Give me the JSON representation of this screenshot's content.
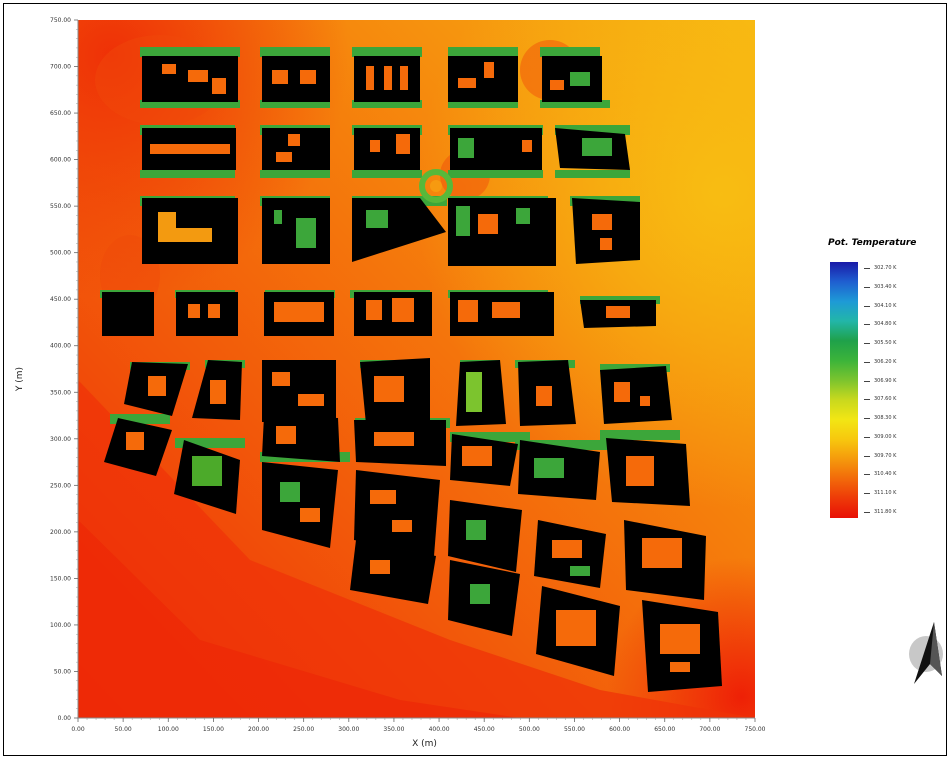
{
  "chart_data": {
    "type": "heatmap",
    "title": "",
    "xlabel": "X (m)",
    "ylabel": "Y (m)",
    "xlim": [
      0,
      750
    ],
    "ylim": [
      0,
      750
    ],
    "x_ticks": [
      "0.00",
      "50.00",
      "100.00",
      "150.00",
      "200.00",
      "250.00",
      "300.00",
      "350.00",
      "400.00",
      "450.00",
      "500.00",
      "550.00",
      "600.00",
      "650.00",
      "700.00",
      "750.00"
    ],
    "y_ticks": [
      "0.00",
      "50.00",
      "100.00",
      "150.00",
      "200.00",
      "250.00",
      "300.00",
      "350.00",
      "400.00",
      "450.00",
      "500.00",
      "550.00",
      "600.00",
      "650.00",
      "700.00",
      "750.00"
    ],
    "grid": false,
    "legend": {
      "title": "Pot. Temperature",
      "placement": "right",
      "labels": [
        "302.70 K",
        "303.40 K",
        "304.10 K",
        "304.80 K",
        "305.50 K",
        "306.20 K",
        "306.90 K",
        "307.60 K",
        "308.30 K",
        "309.00 K",
        "309.70 K",
        "310.40 K",
        "311.10 K",
        "311.80 K"
      ],
      "colors": [
        "#1a1aa8",
        "#1f5fd0",
        "#1e9ad6",
        "#22b6a8",
        "#1fa14a",
        "#3cb43a",
        "#7cc42e",
        "#c8d81e",
        "#f2e614",
        "#f7c80e",
        "#f59a0c",
        "#f26a0a",
        "#ee3a08",
        "#e81006"
      ]
    },
    "colormap_regions": [
      {
        "region": "street canyons and open areas",
        "temperature_K": 310.4,
        "color": "#f57a0c"
      },
      {
        "region": "southwest open area",
        "temperature_K": 311.5,
        "color": "#ee2a06"
      },
      {
        "region": "northeast open area",
        "temperature_K": 309.3,
        "color": "#f6b00f"
      },
      {
        "region": "vegetation patches",
        "temperature_K": 306.0,
        "color": "#3aa73a"
      }
    ],
    "buildings_color": "#000000"
  },
  "north_arrow": {
    "icon": "north-arrow-icon"
  }
}
